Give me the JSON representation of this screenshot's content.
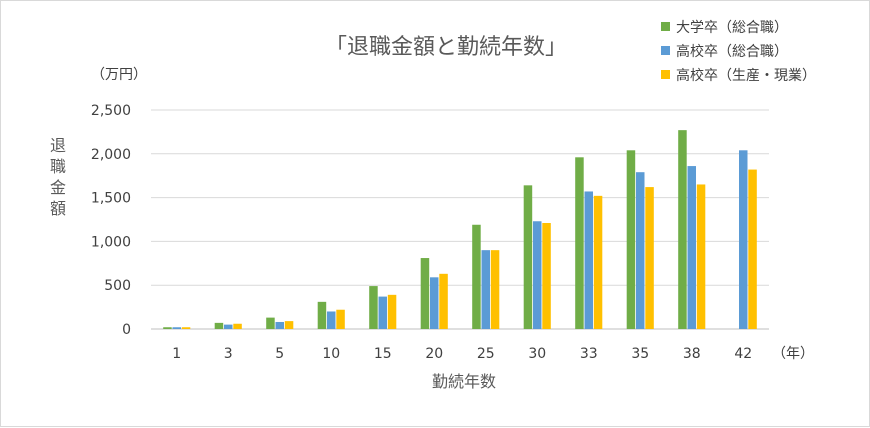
{
  "chart_data": {
    "type": "bar",
    "title": "「退職金額と勤続年数」",
    "xlabel": "勤続年数",
    "ylabel": "退職金額",
    "y_unit": "（万円）",
    "x_unit": "（年）",
    "categories": [
      "1",
      "3",
      "5",
      "10",
      "15",
      "20",
      "25",
      "30",
      "33",
      "35",
      "38",
      "42"
    ],
    "ylim": [
      0,
      2500
    ],
    "yticks": [
      0,
      500,
      1000,
      1500,
      2000,
      2500
    ],
    "ytick_labels": [
      "0",
      "500",
      "1,000",
      "1,500",
      "2,000",
      "2,500"
    ],
    "grid": true,
    "legend_position": "top-right",
    "series": [
      {
        "name": "大学卒（総合職）",
        "color": "#70ad47",
        "values": [
          20,
          70,
          130,
          310,
          490,
          810,
          1190,
          1640,
          1960,
          2040,
          2270,
          null
        ]
      },
      {
        "name": "高校卒（総合職）",
        "color": "#5b9bd5",
        "values": [
          20,
          50,
          80,
          200,
          370,
          590,
          900,
          1230,
          1570,
          1790,
          1860,
          2040
        ]
      },
      {
        "name": "高校卒（生産・現業）",
        "color": "#ffc000",
        "values": [
          20,
          60,
          90,
          220,
          390,
          630,
          900,
          1210,
          1520,
          1620,
          1650,
          1820
        ]
      }
    ]
  }
}
